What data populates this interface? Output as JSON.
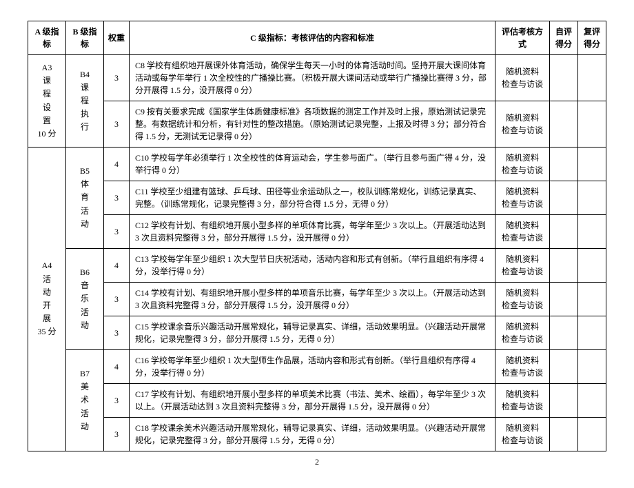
{
  "headers": {
    "a": "A 级指标",
    "b": "B 级指标",
    "w": "权重",
    "c": "C 级指标：考核评估的内容和标准",
    "m": "评估考核方式",
    "s1": "自评得分",
    "s2": "复评得分"
  },
  "page_number": "2",
  "method_text": "随机资料检查与访谈",
  "levelA": [
    {
      "label": "A3\n课\n程\n设\n置\n10 分",
      "rowspan": 2,
      "levelB": [
        {
          "label": "B4\n课\n程\n执\n行",
          "rowspan": 2,
          "rows": [
            {
              "w": "3",
              "c": "C8 学校有组织地开展课外体育活动，确保学生每天一小时的体育活动时间。坚持开展大课间体育活动或每学年举行 1 次全校性的广播操比赛。（积极开展大课间活动或举行广播操比赛得 3 分，部分开展得 1.5 分，没开展得 0 分）"
            },
            {
              "w": "3",
              "c": "C9 按有关要求完成《国家学生体质健康标准》各项数据的测定工作并及时上报，原始测试记录完整。有数据统计和分析，有针对性的整改措施。（原始测试记录完整，上报及时得 3 分；部分符合得 1.5 分，无测试无记录得 0 分）"
            }
          ]
        }
      ]
    },
    {
      "label": "A4\n活\n动\n开\n展\n35 分",
      "rowspan": 9,
      "levelB": [
        {
          "label": "B5\n体\n育\n活\n动",
          "rowspan": 3,
          "rows": [
            {
              "w": "4",
              "c": "C10 学校每学年必须举行 1 次全校性的体育运动会，学生参与面广。（举行且参与面广得 4 分，没举行得 0 分）"
            },
            {
              "w": "3",
              "c": "C11 学校至少组建有篮球、乒乓球、田径等业余运动队之一，校队训练常规化，训练记录真实、完整。（训练常规化，记录完整得 3 分，部分符合得 1.5 分，无得 0 分）"
            },
            {
              "w": "3",
              "c": "C12 学校有计划、有组织地开展小型多样的单项体育比赛，每学年至少 3 次以上。（开展活动达到 3 次且资料完整得 3 分，部分开展得 1.5 分，没开展得 0 分）"
            }
          ]
        },
        {
          "label": "B6\n音\n乐\n活\n动",
          "rowspan": 3,
          "rows": [
            {
              "w": "4",
              "c": "C13 学校每学年至少组织 1 次大型节日庆祝活动，活动内容和形式有创新。（举行且组织有序得 4 分，没举行得 0 分）"
            },
            {
              "w": "3",
              "c": "C14 学校有计划、有组织地开展小型多样的单项音乐比赛，每学年至少 3 次以上。（开展活动达到 3 次且资料完整得 3 分，部分开展得 1.5 分，没开展得 0 分）"
            },
            {
              "w": "3",
              "c": "C15 学校课余音乐兴趣活动开展常规化，辅导记录真实、详细，活动效果明显。（兴趣活动开展常规化，记录完整得 3 分，部分开展得 1.5 分，无得 0 分）"
            }
          ]
        },
        {
          "label": "B7\n美\n术\n活\n动",
          "rowspan": 3,
          "rows": [
            {
              "w": "4",
              "c": "C16 学校每学年至少组织 1 次大型师生作品展，活动内容和形式有创新。（举行且组织有序得 4 分，没举行得 0 分）"
            },
            {
              "w": "3",
              "c": "C17 学校有计划、有组织地开展小型多样的单项美术比赛（书法、美术、绘画），每学年至少 3 次以上。（开展活动达到 3 次且资料完整得 3 分，部分开展得 1.5 分，没开展得 0 分）"
            },
            {
              "w": "3",
              "c": "C18 学校课余美术兴趣活动开展常规化，辅导记录真实、详细，活动效果明显。（兴趣活动开展常规化，记录完整得 3 分，部分开展得 1.5 分，无得 0 分）"
            }
          ]
        }
      ]
    }
  ]
}
